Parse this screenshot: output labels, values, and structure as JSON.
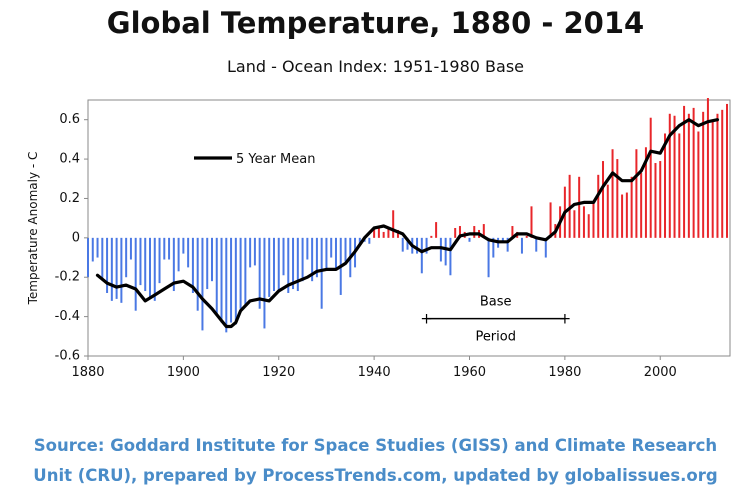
{
  "chart_data": {
    "type": "bar",
    "title": "Global Temperature, 1880 - 2014",
    "subtitle": "Land - Ocean Index: 1951-1980 Base",
    "ylabel": "Temperature Anomaly - C",
    "xlabel": "",
    "xlim": [
      1880,
      2014
    ],
    "ylim": [
      -0.6,
      0.7
    ],
    "x_ticks": [
      1880,
      1900,
      1920,
      1940,
      1960,
      1980,
      2000
    ],
    "y_ticks": [
      -0.6,
      -0.4,
      -0.2,
      0,
      0.2,
      0.4,
      0.6
    ],
    "y_tick_labels": [
      "-0.6",
      "-0.4",
      "-0.2",
      "0",
      "0.2",
      "0.4",
      "0.6"
    ],
    "grid": false,
    "legend": {
      "placement": "top-left",
      "entries": [
        "5 Year Mean"
      ]
    },
    "colors": {
      "positive": "#e8262a",
      "negative": "#4a78e4",
      "mean_line": "#000000"
    },
    "annual_anomaly": {
      "years": [
        1880,
        1881,
        1882,
        1883,
        1884,
        1885,
        1886,
        1887,
        1888,
        1889,
        1890,
        1891,
        1892,
        1893,
        1894,
        1895,
        1896,
        1897,
        1898,
        1899,
        1900,
        1901,
        1902,
        1903,
        1904,
        1905,
        1906,
        1907,
        1908,
        1909,
        1910,
        1911,
        1912,
        1913,
        1914,
        1915,
        1916,
        1917,
        1918,
        1919,
        1920,
        1921,
        1922,
        1923,
        1924,
        1925,
        1926,
        1927,
        1928,
        1929,
        1930,
        1931,
        1932,
        1933,
        1934,
        1935,
        1936,
        1937,
        1938,
        1939,
        1940,
        1941,
        1942,
        1943,
        1944,
        1945,
        1946,
        1947,
        1948,
        1949,
        1950,
        1951,
        1952,
        1953,
        1954,
        1955,
        1956,
        1957,
        1958,
        1959,
        1960,
        1961,
        1962,
        1963,
        1964,
        1965,
        1966,
        1967,
        1968,
        1969,
        1970,
        1971,
        1972,
        1973,
        1974,
        1975,
        1976,
        1977,
        1978,
        1979,
        1980,
        1981,
        1982,
        1983,
        1984,
        1985,
        1986,
        1987,
        1988,
        1989,
        1990,
        1991,
        1992,
        1993,
        1994,
        1995,
        1996,
        1997,
        1998,
        1999,
        2000,
        2001,
        2002,
        2003,
        2004,
        2005,
        2006,
        2007,
        2008,
        2009,
        2010,
        2011,
        2012,
        2013,
        2014
      ],
      "values": [
        -0.2,
        -0.12,
        -0.1,
        -0.21,
        -0.28,
        -0.32,
        -0.31,
        -0.33,
        -0.2,
        -0.11,
        -0.37,
        -0.24,
        -0.27,
        -0.31,
        -0.32,
        -0.23,
        -0.11,
        -0.11,
        -0.27,
        -0.17,
        -0.08,
        -0.15,
        -0.28,
        -0.37,
        -0.47,
        -0.26,
        -0.22,
        -0.39,
        -0.43,
        -0.48,
        -0.43,
        -0.44,
        -0.36,
        -0.34,
        -0.15,
        -0.14,
        -0.36,
        -0.46,
        -0.3,
        -0.27,
        -0.27,
        -0.19,
        -0.28,
        -0.26,
        -0.27,
        -0.22,
        -0.11,
        -0.22,
        -0.2,
        -0.36,
        -0.16,
        -0.1,
        -0.16,
        -0.29,
        -0.12,
        -0.2,
        -0.15,
        -0.03,
        -0.02,
        -0.03,
        0.05,
        0.06,
        0.03,
        0.05,
        0.14,
        0.04,
        -0.07,
        -0.06,
        -0.08,
        -0.08,
        -0.18,
        -0.08,
        0.01,
        0.08,
        -0.12,
        -0.14,
        -0.19,
        0.05,
        0.06,
        0.03,
        -0.02,
        0.06,
        0.04,
        0.07,
        -0.2,
        -0.1,
        -0.05,
        -0.02,
        -0.07,
        0.06,
        0.03,
        -0.08,
        0.01,
        0.16,
        -0.07,
        -0.01,
        -0.1,
        0.18,
        0.07,
        0.16,
        0.26,
        0.32,
        0.14,
        0.31,
        0.16,
        0.12,
        0.18,
        0.32,
        0.39,
        0.27,
        0.45,
        0.4,
        0.22,
        0.23,
        0.31,
        0.45,
        0.33,
        0.46,
        0.61,
        0.38,
        0.39,
        0.53,
        0.63,
        0.62,
        0.53,
        0.67,
        0.63,
        0.66,
        0.54,
        0.64,
        0.71,
        0.6,
        0.63,
        0.65,
        0.68
      ]
    },
    "five_year_mean": {
      "years": [
        1882,
        1884,
        1886,
        1888,
        1890,
        1892,
        1894,
        1896,
        1898,
        1900,
        1902,
        1904,
        1906,
        1908,
        1909,
        1910,
        1911,
        1912,
        1914,
        1916,
        1918,
        1920,
        1922,
        1924,
        1926,
        1928,
        1930,
        1932,
        1934,
        1936,
        1938,
        1940,
        1942,
        1944,
        1946,
        1948,
        1950,
        1952,
        1954,
        1956,
        1958,
        1960,
        1962,
        1964,
        1966,
        1968,
        1970,
        1972,
        1974,
        1976,
        1978,
        1980,
        1982,
        1984,
        1986,
        1988,
        1990,
        1992,
        1994,
        1996,
        1998,
        2000,
        2002,
        2004,
        2006,
        2008,
        2010,
        2012
      ],
      "values": [
        -0.19,
        -0.23,
        -0.25,
        -0.24,
        -0.26,
        -0.32,
        -0.29,
        -0.26,
        -0.23,
        -0.22,
        -0.25,
        -0.31,
        -0.36,
        -0.42,
        -0.45,
        -0.45,
        -0.43,
        -0.37,
        -0.32,
        -0.31,
        -0.32,
        -0.27,
        -0.24,
        -0.22,
        -0.2,
        -0.17,
        -0.16,
        -0.16,
        -0.13,
        -0.07,
        0,
        0.05,
        0.06,
        0.04,
        0.02,
        -0.04,
        -0.07,
        -0.05,
        -0.05,
        -0.06,
        0.01,
        0.02,
        0.02,
        -0.01,
        -0.02,
        -0.02,
        0.02,
        0.02,
        0,
        -0.01,
        0.03,
        0.13,
        0.17,
        0.18,
        0.18,
        0.26,
        0.33,
        0.29,
        0.29,
        0.34,
        0.44,
        0.43,
        0.52,
        0.57,
        0.6,
        0.57,
        0.59,
        0.6
      ]
    },
    "annotations": [
      {
        "text_top": "Base",
        "text_bottom": "Period",
        "x_start": 1951,
        "x_end": 1980,
        "y": -0.41
      }
    ]
  },
  "source": {
    "line1": "Source: Goddard Institute for Space Studies (GISS) and Climate Research",
    "line2": "Unit (CRU), prepared by ProcessTrends.com, updated by globalissues.org"
  }
}
